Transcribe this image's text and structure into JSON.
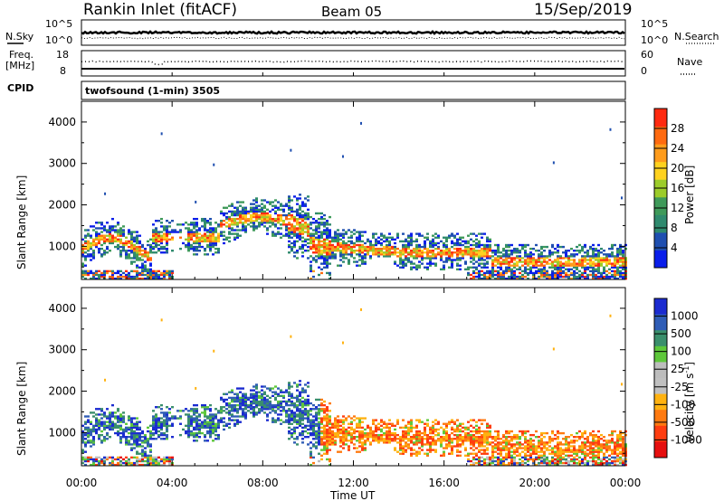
{
  "header": {
    "station": "Rankin Inlet (fitACF)",
    "beam": "Beam 05",
    "date": "15/Sep/2019"
  },
  "noise_panel": {
    "left_label": "N.Sky",
    "left_ticks": [
      "10^5",
      "10^0"
    ],
    "right_label": "N.Search",
    "right_ticks": [
      "10^5",
      "10^0"
    ]
  },
  "freq_panel": {
    "left_label_1": "Freq.",
    "left_label_2": "[MHz]",
    "left_ticks": [
      "18",
      "8"
    ],
    "right_label": "Nave",
    "right_ticks": [
      "60",
      "0"
    ],
    "cpid_label": "CPID"
  },
  "cpid_panel": {
    "program": "twofsound (1-min) 3505"
  },
  "colors": {
    "power_scale": [
      "#0a1eea",
      "#1f4fb0",
      "#2f8a6e",
      "#3f9a5a",
      "#9ccc2a",
      "#ffd21f",
      "#ff9c1c",
      "#ff6a10",
      "#ff2a10"
    ],
    "velocity_scale": [
      "#1b2bd0",
      "#2f5db6",
      "#3a8f6c",
      "#5ec83a",
      "#bdbdbd",
      "#c0c0c0",
      "#ffb210",
      "#ff7a10",
      "#ff3d10",
      "#e60f0f"
    ]
  },
  "chart_data": [
    {
      "type": "heatmap",
      "name": "power-panel",
      "ylabel": "Slant Range [km]",
      "yticks": [
        "1000",
        "2000",
        "3000",
        "4000"
      ],
      "ylim": [
        200,
        4500
      ],
      "colorbar_label": "Power [dB]",
      "colorbar_ticks": [
        "4",
        "8",
        "12",
        "16",
        "20",
        "24",
        "28"
      ],
      "colorbar_range": [
        0,
        30
      ]
    },
    {
      "type": "heatmap",
      "name": "velocity-panel",
      "ylabel": "Slant Range [km]",
      "yticks": [
        "1000",
        "2000",
        "3000",
        "4000"
      ],
      "ylim": [
        200,
        4500
      ],
      "colorbar_label": "Velocity [m s",
      "colorbar_label_sup": "-1",
      "colorbar_label_end": "]",
      "colorbar_ticks": [
        "1000",
        "500",
        "100",
        "25",
        "-25",
        "-100",
        "-500",
        "-1000"
      ]
    }
  ],
  "time_axis": {
    "xlabel": "Time UT",
    "ticks": [
      "00:00",
      "04:00",
      "08:00",
      "12:00",
      "16:00",
      "20:00",
      "00:00"
    ]
  }
}
